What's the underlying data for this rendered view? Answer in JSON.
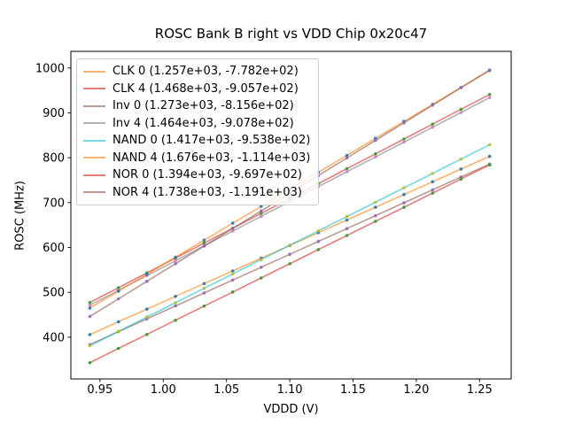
{
  "figure": {
    "title": "ROSC Bank B right vs VDD Chip 0x20c47"
  },
  "chart_data": {
    "type": "scatter",
    "title": "ROSC Bank B right vs VDD Chip 0x20c47",
    "xlabel": "VDDD (V)",
    "ylabel": "ROSC (MHz)",
    "xlim": [
      0.927,
      1.275
    ],
    "ylim": [
      307,
      1037
    ],
    "grid": false,
    "legend_position": "upper left",
    "x_tick_values": [
      0.95,
      1.0,
      1.05,
      1.1,
      1.15,
      1.2,
      1.25
    ],
    "x_tick_labels": [
      "0.95",
      "1.00",
      "1.05",
      "1.10",
      "1.15",
      "1.20",
      "1.25"
    ],
    "y_tick_values": [
      400,
      500,
      600,
      700,
      800,
      900,
      1000
    ],
    "y_tick_labels": [
      "400",
      "500",
      "600",
      "700",
      "800",
      "900",
      "1000"
    ],
    "x": [
      0.942,
      0.9646,
      0.9871,
      1.0097,
      1.0323,
      1.0549,
      1.0774,
      1.1,
      1.1226,
      1.1451,
      1.1677,
      1.1903,
      1.2129,
      1.2354,
      1.258
    ],
    "line_opacity": 0.6,
    "marker_opacity": 0.9,
    "series": [
      {
        "name": "CLK 0",
        "legend": "CLK 0 (1.257e+03, -7.782e+02)",
        "slope": 1257,
        "intercept": -778.2,
        "line_color": "#ff7f0e",
        "marker_color": "#1f77b4",
        "y": [
          405.9,
          434.5,
          462.6,
          491.0,
          519.4,
          547.8,
          576.1,
          604.5,
          632.9,
          661.2,
          689.6,
          718.0,
          746.4,
          774.7,
          803.1
        ]
      },
      {
        "name": "CLK 4",
        "legend": "CLK 4 (1.468e+03, -9.057e+02)",
        "slope": 1468,
        "intercept": -905.7,
        "line_color": "#d62728",
        "marker_color": "#2ca02c",
        "y": [
          477.2,
          510.3,
          543.4,
          576.5,
          609.7,
          642.9,
          675.9,
          709.1,
          742.3,
          775.3,
          808.5,
          841.7,
          874.8,
          907.9,
          941.0
        ]
      },
      {
        "name": "Inv 0",
        "legend": "Inv 0 (1.273e+03, -8.156e+02)",
        "slope": 1273,
        "intercept": -815.6,
        "line_color": "#8c564b",
        "marker_color": "#9467bd",
        "y": [
          383.6,
          412.3,
          441.0,
          469.7,
          498.5,
          527.3,
          555.9,
          584.7,
          613.5,
          642.1,
          670.9,
          699.7,
          728.4,
          757.1,
          785.8
        ]
      },
      {
        "name": "Inv 4",
        "legend": "Inv 4 (1.464e+03, -9.078e+02)",
        "slope": 1464,
        "intercept": -907.8,
        "line_color": "#7f7f7f",
        "marker_color": "#e377c2",
        "y": [
          471.2,
          504.4,
          537.3,
          570.4,
          603.5,
          636.6,
          669.5,
          702.6,
          735.7,
          768.6,
          801.7,
          834.8,
          867.9,
          900.8,
          933.9
        ]
      },
      {
        "name": "NAND 0",
        "legend": "NAND 0 (1.417e+03, -9.538e+02)",
        "slope": 1417,
        "intercept": -953.8,
        "line_color": "#17becf",
        "marker_color": "#bcbd22",
        "y": [
          381.0,
          413.0,
          444.9,
          476.9,
          509.0,
          541.0,
          572.9,
          604.9,
          636.9,
          668.8,
          700.8,
          732.9,
          764.9,
          796.8,
          828.8
        ]
      },
      {
        "name": "NAND 4",
        "legend": "NAND 4 (1.676e+03, -1.114e+03)",
        "slope": 1676,
        "intercept": -1114,
        "line_color": "#ff7f0e",
        "marker_color": "#1f77b4",
        "y": [
          464.8,
          502.7,
          540.4,
          578.3,
          616.1,
          654.0,
          691.7,
          729.6,
          767.5,
          805.2,
          843.1,
          880.9,
          918.8,
          956.5,
          994.4
        ]
      },
      {
        "name": "NOR 0",
        "legend": "NOR 0 (1.394e+03, -9.697e+02)",
        "slope": 1394,
        "intercept": -969.7,
        "line_color": "#d62728",
        "marker_color": "#2ca02c",
        "y": [
          343.4,
          375.0,
          406.3,
          437.8,
          469.3,
          500.8,
          532.2,
          563.7,
          595.2,
          626.6,
          658.1,
          689.6,
          721.1,
          752.5,
          784.0
        ]
      },
      {
        "name": "NOR 4",
        "legend": "NOR 4 (1.738e+03, -1.191e+03)",
        "slope": 1738,
        "intercept": -1191,
        "line_color": "#8c564b",
        "marker_color": "#9467bd",
        "y": [
          446.2,
          485.5,
          524.6,
          563.9,
          603.1,
          642.4,
          681.5,
          720.8,
          760.1,
          799.2,
          838.5,
          877.7,
          917.0,
          956.1,
          995.4
        ]
      }
    ]
  }
}
